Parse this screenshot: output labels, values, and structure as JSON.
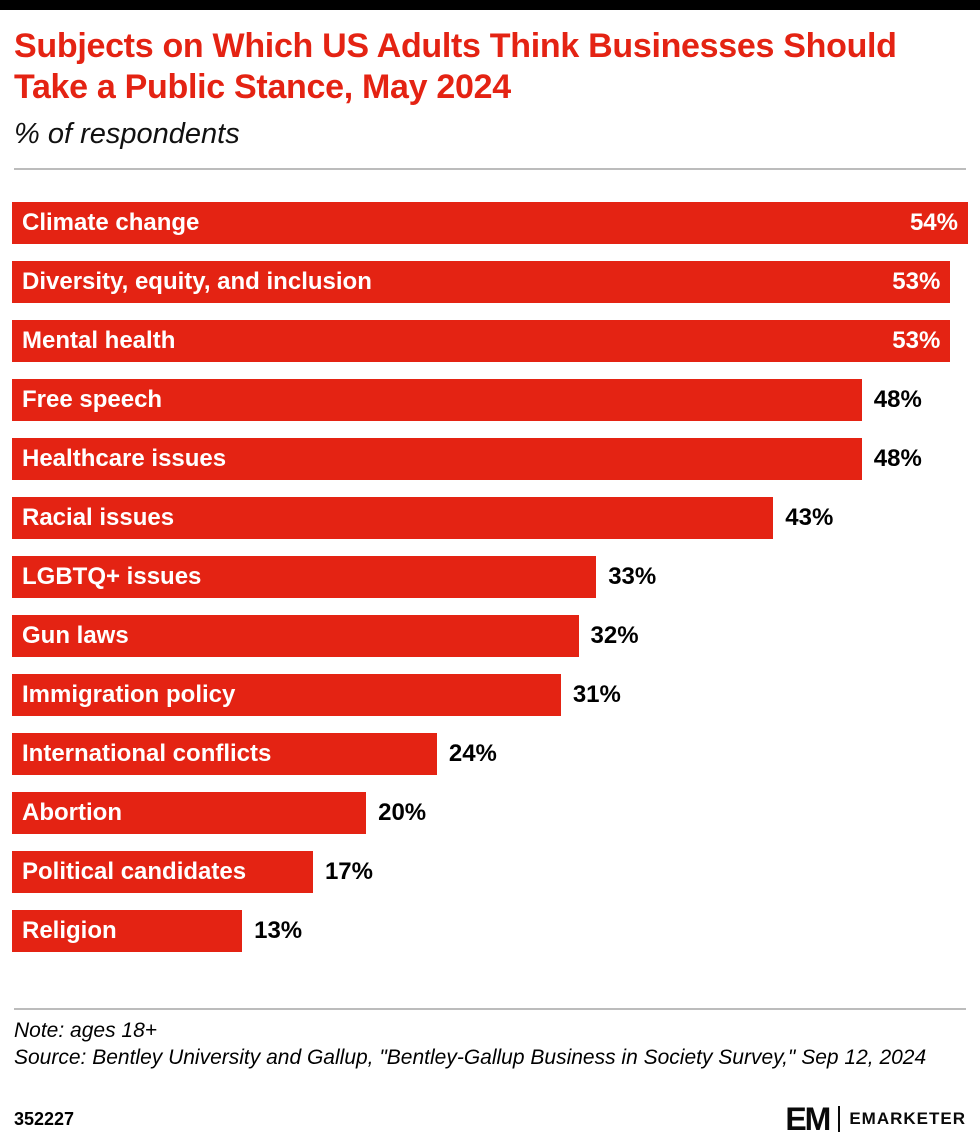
{
  "page": {
    "title": "Subjects on Which US Adults Think Businesses Should Take a Public Stance, May 2024",
    "subtitle": "% of respondents",
    "note": "Note: ages 18+",
    "source": "Source: Bentley University and Gallup, \"Bentley-Gallup Business in Society Survey,\" Sep 12, 2024",
    "footer_id": "352227",
    "brand": {
      "logo_short": "EM",
      "logo_text": "EMARKETER"
    }
  },
  "colors": {
    "bar": "#e42313",
    "title": "#e42313",
    "text": "#000000",
    "bar_label": "#ffffff"
  },
  "chart_data": {
    "type": "bar",
    "orientation": "horizontal",
    "title": "Subjects on Which US Adults Think Businesses Should Take a Public Stance, May 2024",
    "xlabel": "% of respondents",
    "ylabel": "",
    "xlim": [
      0,
      54
    ],
    "grid": false,
    "legend": "none",
    "value_suffix": "%",
    "categories": [
      "Climate change",
      "Diversity, equity, and inclusion",
      "Mental health",
      "Free speech",
      "Healthcare issues",
      "Racial issues",
      "LGBTQ+ issues",
      "Gun laws",
      "Immigration policy",
      "International conflicts",
      "Abortion",
      "Political candidates",
      "Religion"
    ],
    "values": [
      54,
      53,
      53,
      48,
      48,
      43,
      33,
      32,
      31,
      24,
      20,
      17,
      13
    ]
  }
}
